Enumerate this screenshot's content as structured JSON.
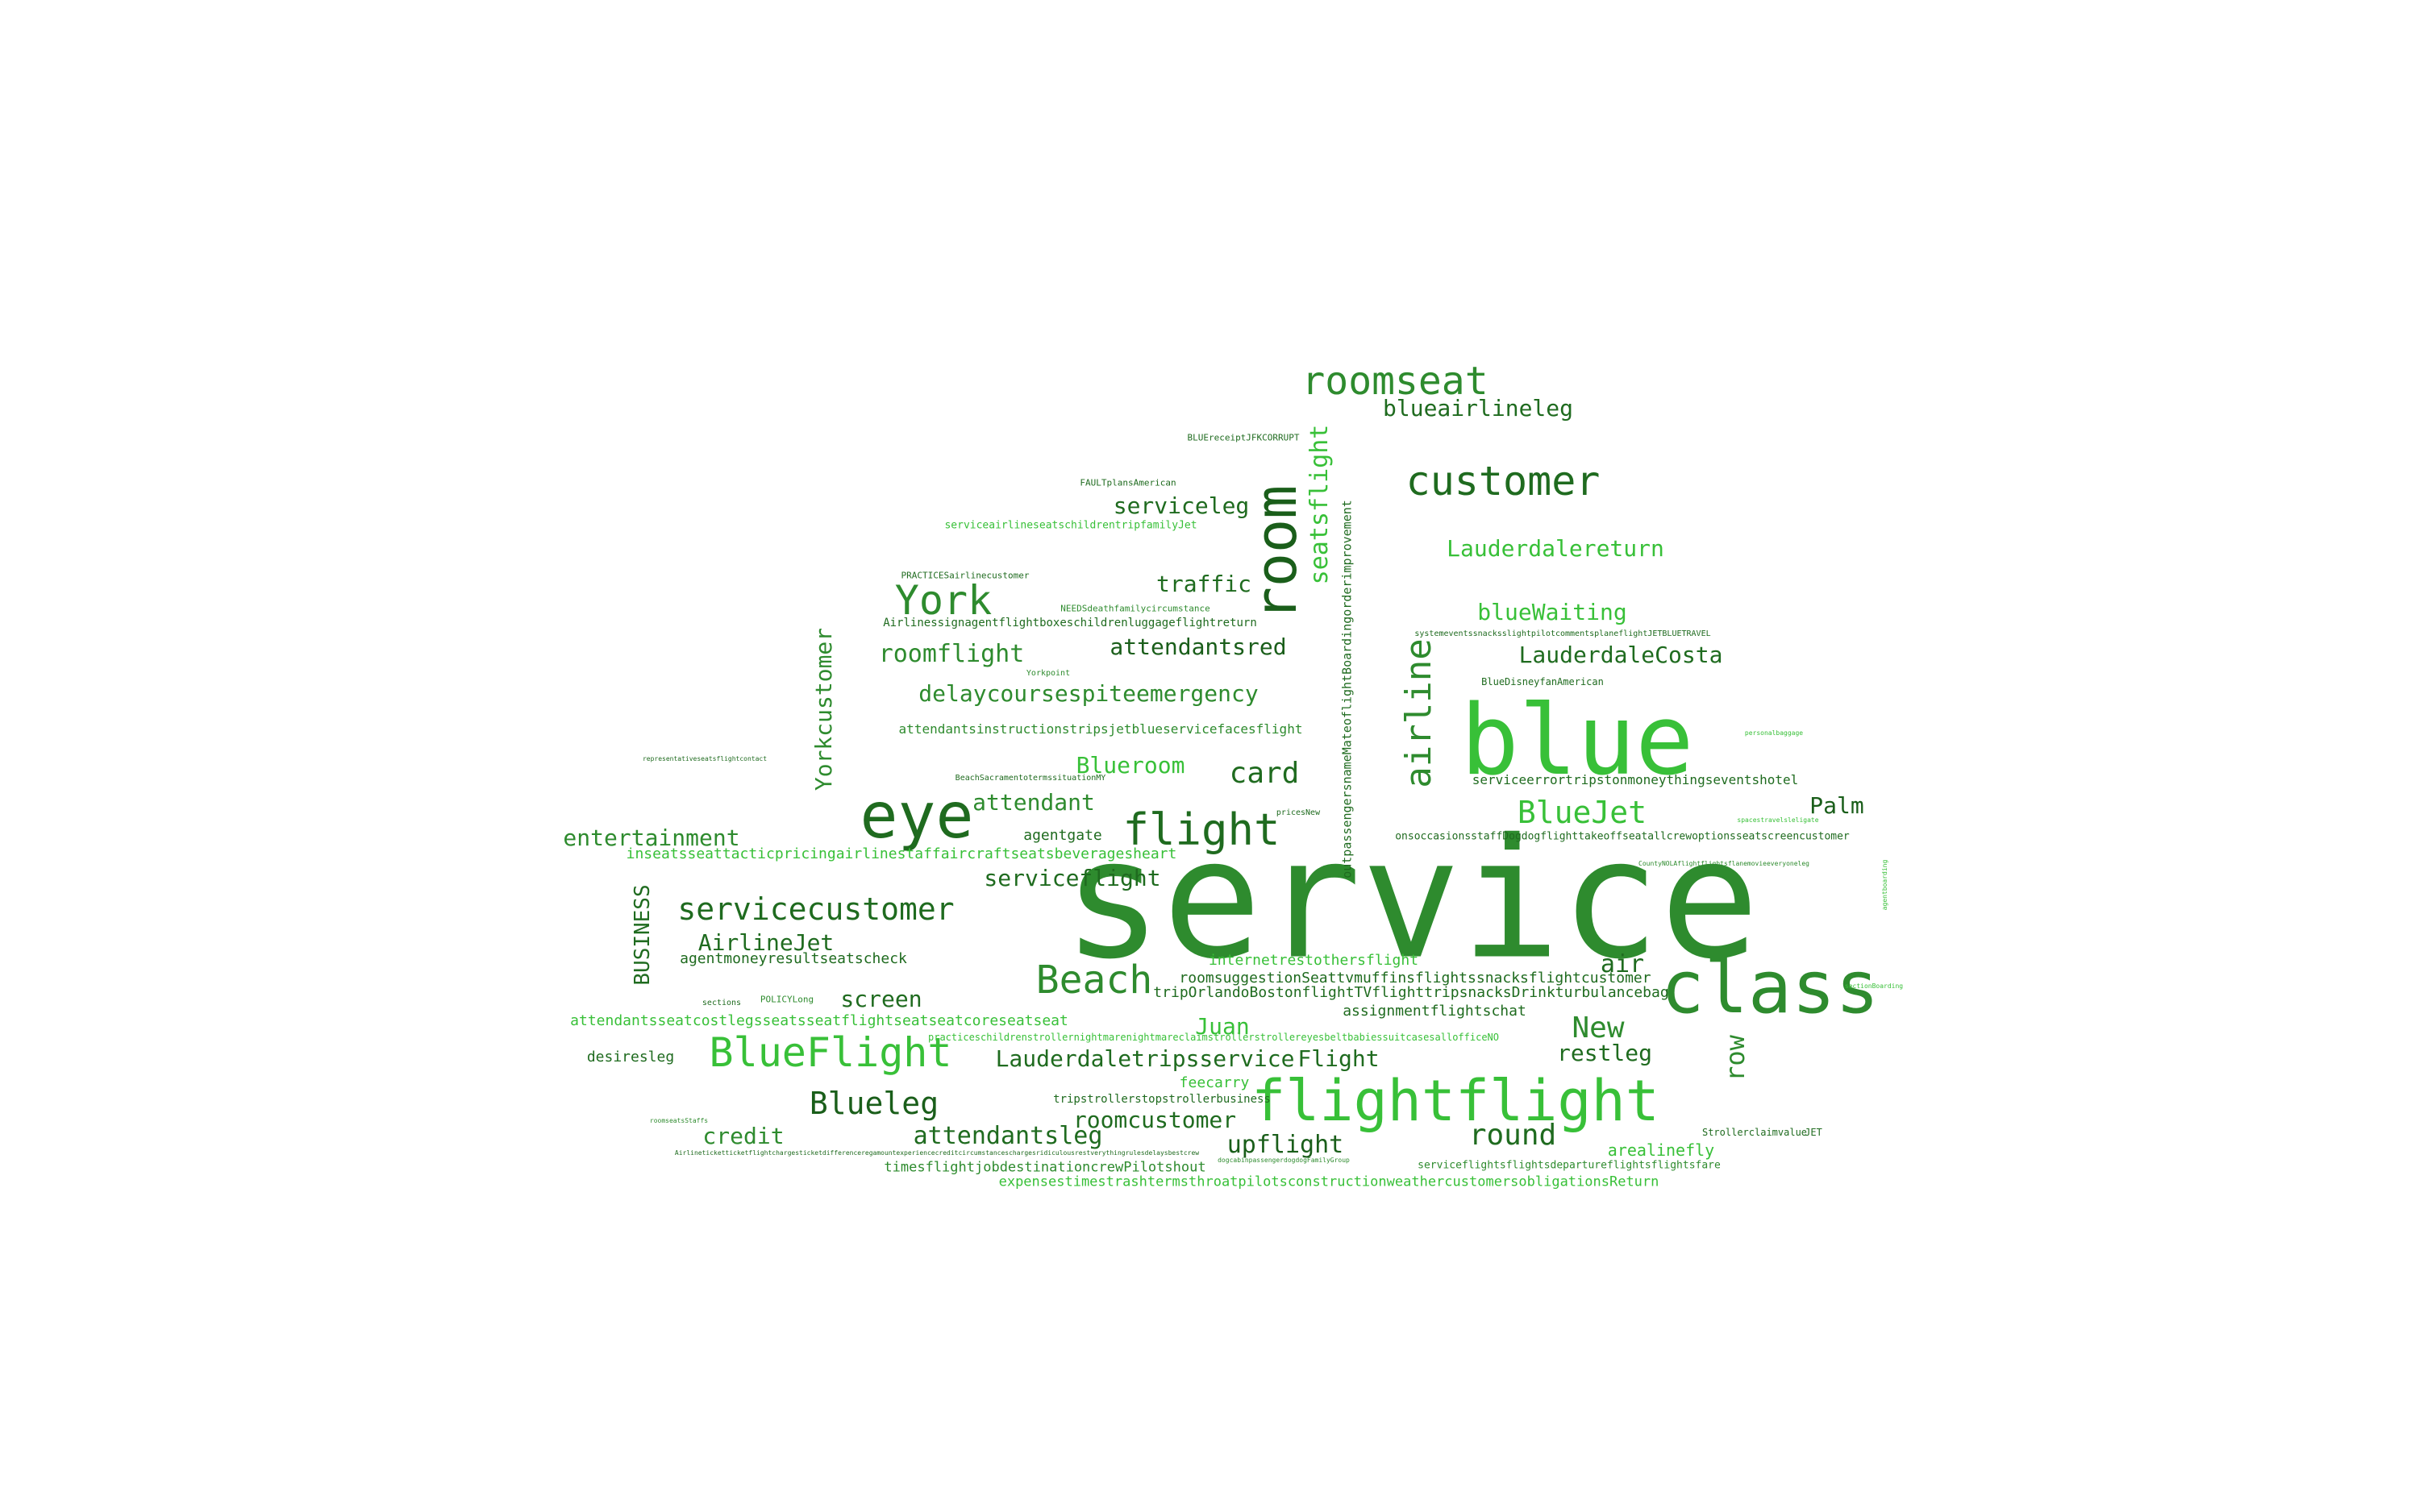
{
  "colors": {
    "background": "#ffffff",
    "palette": [
      "#1f6b1f",
      "#2e8b2e",
      "#38c038",
      "#1a5e1a"
    ]
  },
  "words": [
    {
      "text": "service"
    },
    {
      "text": "blue"
    },
    {
      "text": "class"
    },
    {
      "text": "flightflight"
    },
    {
      "text": "eye"
    },
    {
      "text": "room"
    },
    {
      "text": "customer"
    },
    {
      "text": "roomseat"
    },
    {
      "text": "York"
    },
    {
      "text": "BlueFlight"
    },
    {
      "text": "Beach"
    },
    {
      "text": "flight"
    },
    {
      "text": "airline"
    },
    {
      "text": "servicecustomer"
    },
    {
      "text": "BlueJet"
    },
    {
      "text": "card"
    },
    {
      "text": "round"
    },
    {
      "text": "Blueleg"
    },
    {
      "text": "New"
    },
    {
      "text": "Lauderdaletripsservice"
    },
    {
      "text": "Flight"
    },
    {
      "text": "Juan"
    },
    {
      "text": "row"
    },
    {
      "text": "seatsflight"
    },
    {
      "text": "Yorkcustomer"
    },
    {
      "text": "BUSINESS"
    },
    {
      "text": "entertainment"
    },
    {
      "text": "roomflight"
    },
    {
      "text": "attendantsred"
    },
    {
      "text": "delaycoursespiteemergency"
    },
    {
      "text": "attendant"
    },
    {
      "text": "Blueroom"
    },
    {
      "text": "serviceflight"
    },
    {
      "text": "AirlineJet"
    },
    {
      "text": "screen"
    },
    {
      "text": "attendantsleg"
    },
    {
      "text": "roomcustomer"
    },
    {
      "text": "upflight"
    },
    {
      "text": "credit"
    },
    {
      "text": "restleg"
    },
    {
      "text": "air"
    },
    {
      "text": "Palm"
    },
    {
      "text": "LauderdaleCosta"
    },
    {
      "text": "blueWaiting"
    },
    {
      "text": "Lauderdalereturn"
    },
    {
      "text": "serviceleg"
    },
    {
      "text": "traffic"
    },
    {
      "text": "blueairlineleg"
    },
    {
      "text": "outpassengersnameMateoflightBoardingorderimprovement"
    },
    {
      "text": "arealinefly"
    },
    {
      "text": "desiresleg"
    },
    {
      "text": "feecarry"
    },
    {
      "text": "agentgate"
    },
    {
      "text": "internetrestothersflight"
    },
    {
      "text": "assignmentflightschat"
    },
    {
      "text": "tripOrlandoBostonflightTVflighttripsnacksDrinkturbulancebag"
    },
    {
      "text": "roomsuggestionSeattvmuffinsflightssnacksflightcustomer"
    },
    {
      "text": "agentmoneyresultseatscheck"
    },
    {
      "text": "inseatsseattacticpricingairlinestaffaircraftseatsbeveragesheart"
    },
    {
      "text": "attendantsseatcostlegsseatsseatflightseatseatcoreseatseat"
    },
    {
      "text": "expensestimestrashtermsthroatpilotsconstructionweathercustomersobligationsReturn"
    },
    {
      "text": "timesflightjobdestinationcrewPilotshout"
    },
    {
      "text": "serviceflightsflightsdepartureflightsflightsfare"
    },
    {
      "text": "Strollerclaimvalue"
    },
    {
      "text": "JET"
    },
    {
      "text": "serviceerrortripstonmoneythingseventshotel"
    },
    {
      "text": "onsoccasionsstaffDogdogflighttakeoffseatallcrewoptionsseatscreencustomer"
    },
    {
      "text": "attendantsinstructionstripsjetblueservicefacesflight"
    },
    {
      "text": "Airlinessignagentflightboxeschildrenluggageflightreturn"
    },
    {
      "text": "serviceairlineseatschildrentripfamilyJet"
    },
    {
      "text": "BLUEreceiptJFKCORRUPT"
    },
    {
      "text": "FAULTplansAmerican"
    },
    {
      "text": "PRACTICESairlinecustomer"
    },
    {
      "text": "NEEDSdeathfamilycircumstance"
    },
    {
      "text": "BlueDisneyfanAmerican"
    },
    {
      "text": "systemeventssnacksslightpilotcommentsplaneflightJETBLUETRAVEL"
    },
    {
      "text": "tripstrollerstopstrollerbusiness"
    },
    {
      "text": "BeachSacramentotermssituationMY"
    },
    {
      "text": "POLICYLong"
    },
    {
      "text": "Yorkpoint"
    },
    {
      "text": "pricesNew"
    },
    {
      "text": "sections"
    },
    {
      "text": "practiceschildrenstrollernightmarenightmareclaimstrollerstrollereyesbeltbabiessuitcasesallofficeNO"
    },
    {
      "text": "Airlineticketticketflightchargesticketdifferenceregamountexperiencecreditcircumstanceschargesridiculousrestverythingrulesdelaysbestcrew"
    },
    {
      "text": "dogcabinpassengerdogdogFamilyGroup"
    },
    {
      "text": "representativeseatsflightcontact"
    },
    {
      "text": "roomseatsStaffs"
    },
    {
      "text": "CountyNOLAflightflightsflanemovieeveryoneleg"
    },
    {
      "text": "personalbaggage"
    },
    {
      "text": "spacestravelsleligate"
    },
    {
      "text": "sectionBoarding"
    },
    {
      "text": "agentboarding"
    }
  ]
}
